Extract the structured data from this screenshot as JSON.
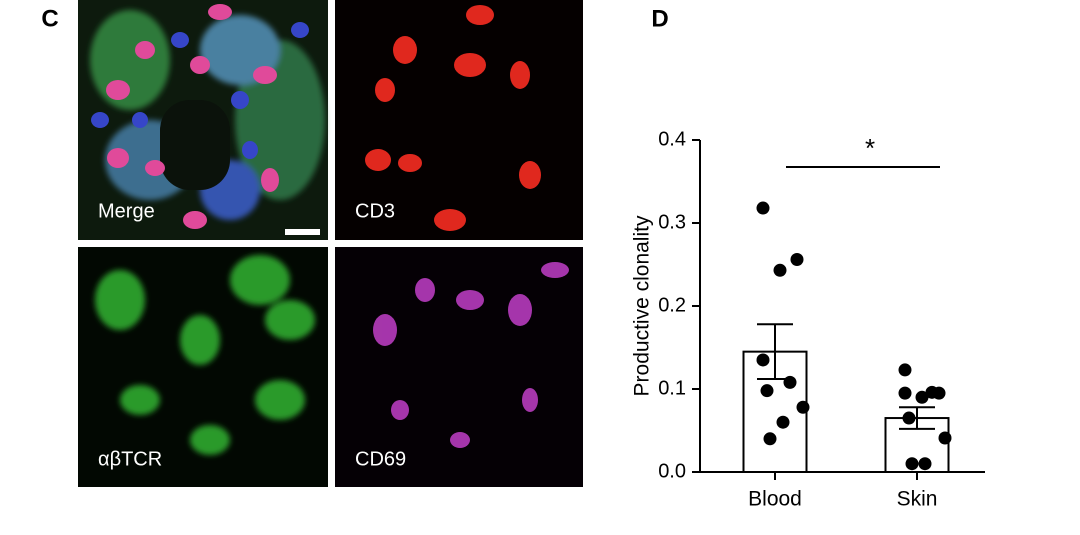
{
  "figure": {
    "panel_c": {
      "label": "C",
      "images": [
        "Merge",
        "CD3",
        "αβTCR",
        "CD69"
      ]
    }
  },
  "chart_data": {
    "type": "bar",
    "panel_label": "D",
    "ylabel": "Productive clonality",
    "categories": [
      "Blood",
      "Skin"
    ],
    "values": [
      0.145,
      0.065
    ],
    "errors": [
      0.033,
      0.013
    ],
    "points": [
      [
        0.318,
        0.256,
        0.243,
        0.135,
        0.108,
        0.098,
        0.078,
        0.06,
        0.04
      ],
      [
        0.123,
        0.095,
        0.09,
        0.095,
        0.096,
        0.065,
        0.041,
        0.01,
        0.01
      ]
    ],
    "color": "#ffffff",
    "point_color": "#000000",
    "ylim": [
      0,
      0.4
    ],
    "yticks": [
      {
        "value": 0,
        "label": "0.0"
      },
      0.1,
      0.2,
      0.3,
      0.4
    ],
    "significance": "*"
  }
}
